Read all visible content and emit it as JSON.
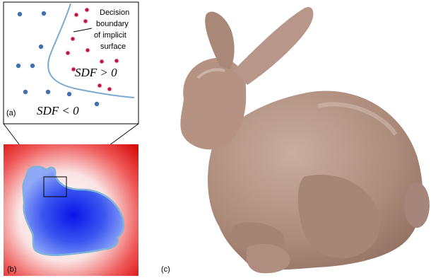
{
  "panel_a": {
    "label": "(a)",
    "annotation": [
      "Decision",
      "boundary",
      "of implicit",
      "surface"
    ],
    "sdf_positive": "SDF > 0",
    "sdf_negative": "SDF < 0",
    "colors": {
      "inside_points": "#3f6fb5",
      "outside_points": "#c0143c",
      "boundary": "#79a9cf"
    }
  },
  "panel_b": {
    "label": "(b)",
    "colors": {
      "outside_field": "#e81818",
      "inside_field": "#1a2ff0",
      "contour": "#7fb3d9"
    }
  },
  "panel_c": {
    "label": "(c)",
    "colors": {
      "mesh": "#b08e7f"
    }
  }
}
